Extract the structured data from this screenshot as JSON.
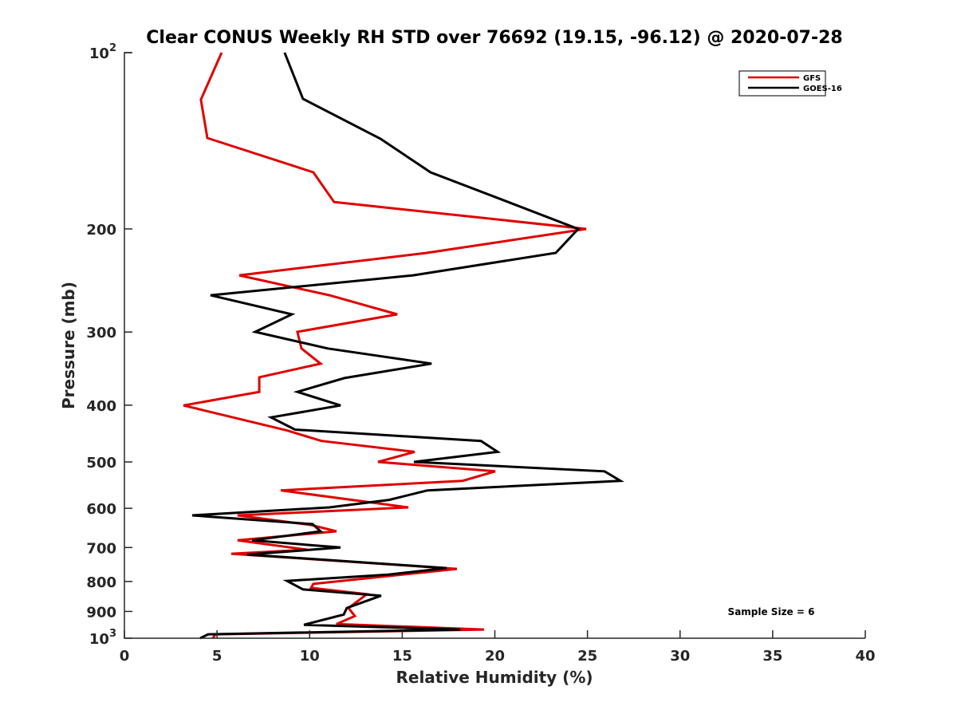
{
  "chart_data": {
    "type": "line",
    "title": "Clear CONUS Weekly RH STD over 76692 (19.15, -96.12) @ 2020-07-28",
    "xlabel": "Relative Humidity (%)",
    "ylabel": "Pressure (mb)",
    "xlim": [
      0,
      40
    ],
    "ylim": [
      100,
      1000
    ],
    "yscale": "log",
    "y_reversed": true,
    "grid": false,
    "x_ticks": [
      {
        "value": 0,
        "label": "0"
      },
      {
        "value": 5,
        "label": "5"
      },
      {
        "value": 10,
        "label": "10"
      },
      {
        "value": 15,
        "label": "15"
      },
      {
        "value": 20,
        "label": "20"
      },
      {
        "value": 25,
        "label": "25"
      },
      {
        "value": 30,
        "label": "30"
      },
      {
        "value": 35,
        "label": "35"
      },
      {
        "value": 40,
        "label": "40"
      }
    ],
    "y_ticks": [
      {
        "value": 100,
        "label": "10",
        "sup": "2"
      },
      {
        "value": 200,
        "label": "200",
        "sup": ""
      },
      {
        "value": 300,
        "label": "300",
        "sup": ""
      },
      {
        "value": 400,
        "label": "400",
        "sup": ""
      },
      {
        "value": 500,
        "label": "500",
        "sup": ""
      },
      {
        "value": 600,
        "label": "600",
        "sup": ""
      },
      {
        "value": 700,
        "label": "700",
        "sup": ""
      },
      {
        "value": 800,
        "label": "800",
        "sup": ""
      },
      {
        "value": 900,
        "label": "900",
        "sup": ""
      },
      {
        "value": 1000,
        "label": "10",
        "sup": "3"
      }
    ],
    "legend": {
      "position": "top-right"
    },
    "annotation": "Sample Size = 6",
    "series": [
      {
        "name": "GFS",
        "color": "#e00000",
        "points": [
          [
            5.25,
            100
          ],
          [
            4.13,
            120.3
          ],
          [
            4.48,
            139.9
          ],
          [
            10.2,
            160.1
          ],
          [
            11.32,
            179.9
          ],
          [
            24.93,
            200
          ],
          [
            16.32,
            219.8
          ],
          [
            6.2,
            240
          ],
          [
            11.07,
            259.6
          ],
          [
            14.73,
            279.8
          ],
          [
            9.34,
            299.8
          ],
          [
            9.56,
            320
          ],
          [
            10.59,
            339.7
          ],
          [
            7.28,
            358.4
          ],
          [
            7.28,
            379.6
          ],
          [
            3.19,
            400.4
          ],
          [
            8.78,
            441.8
          ],
          [
            10.64,
            460.4
          ],
          [
            15.67,
            480.6
          ],
          [
            13.69,
            500
          ],
          [
            20.02,
            518.8
          ],
          [
            18.26,
            538.5
          ],
          [
            8.44,
            559.1
          ],
          [
            15.33,
            597.9
          ],
          [
            6.11,
            616.9
          ],
          [
            10.08,
            640.7
          ],
          [
            11.45,
            656.8
          ],
          [
            6.11,
            680.6
          ],
          [
            9.9,
            706.2
          ],
          [
            5.77,
            717.4
          ],
          [
            17.95,
            761.5
          ],
          [
            10.2,
            807.7
          ],
          [
            10.08,
            820.3
          ],
          [
            13.09,
            840.9
          ],
          [
            12.1,
            887.8
          ],
          [
            12.44,
            916.4
          ],
          [
            11.45,
            945.8
          ],
          [
            19.42,
            966.4
          ],
          [
            4.91,
            984.7
          ],
          [
            4.78,
            1000
          ]
        ]
      },
      {
        "name": "GOES-16",
        "color": "#000000",
        "points": [
          [
            8.65,
            100
          ],
          [
            9.64,
            119.9
          ],
          [
            13.82,
            140.3
          ],
          [
            16.53,
            160.1
          ],
          [
            20.84,
            180.5
          ],
          [
            24.5,
            200
          ],
          [
            23.29,
            219.8
          ],
          [
            15.59,
            240
          ],
          [
            4.65,
            259.6
          ],
          [
            9.04,
            279.8
          ],
          [
            7.06,
            299.8
          ],
          [
            10.98,
            320
          ],
          [
            16.58,
            339.7
          ],
          [
            11.88,
            359.5
          ],
          [
            9.34,
            379.6
          ],
          [
            11.67,
            400.4
          ],
          [
            7.92,
            419.6
          ],
          [
            9.21,
            440.3
          ],
          [
            19.25,
            460.4
          ],
          [
            20.15,
            480.6
          ],
          [
            15.63,
            500
          ],
          [
            25.92,
            518.8
          ],
          [
            26.78,
            538.5
          ],
          [
            16.36,
            559.1
          ],
          [
            14.29,
            580.4
          ],
          [
            11.07,
            597.9
          ],
          [
            3.66,
            616.9
          ],
          [
            10.16,
            638.6
          ],
          [
            10.59,
            656.8
          ],
          [
            6.89,
            680.6
          ],
          [
            11.67,
            699.9
          ],
          [
            6.63,
            719.7
          ],
          [
            17.4,
            759.1
          ],
          [
            14.25,
            778.5
          ],
          [
            8.78,
            798.4
          ],
          [
            9.64,
            825.3
          ],
          [
            13.86,
            846.1
          ],
          [
            12.01,
            887.8
          ],
          [
            11.84,
            911.0
          ],
          [
            9.69,
            948.7
          ],
          [
            18.13,
            966.4
          ],
          [
            4.52,
            984.7
          ],
          [
            4.09,
            1000
          ]
        ]
      }
    ]
  }
}
